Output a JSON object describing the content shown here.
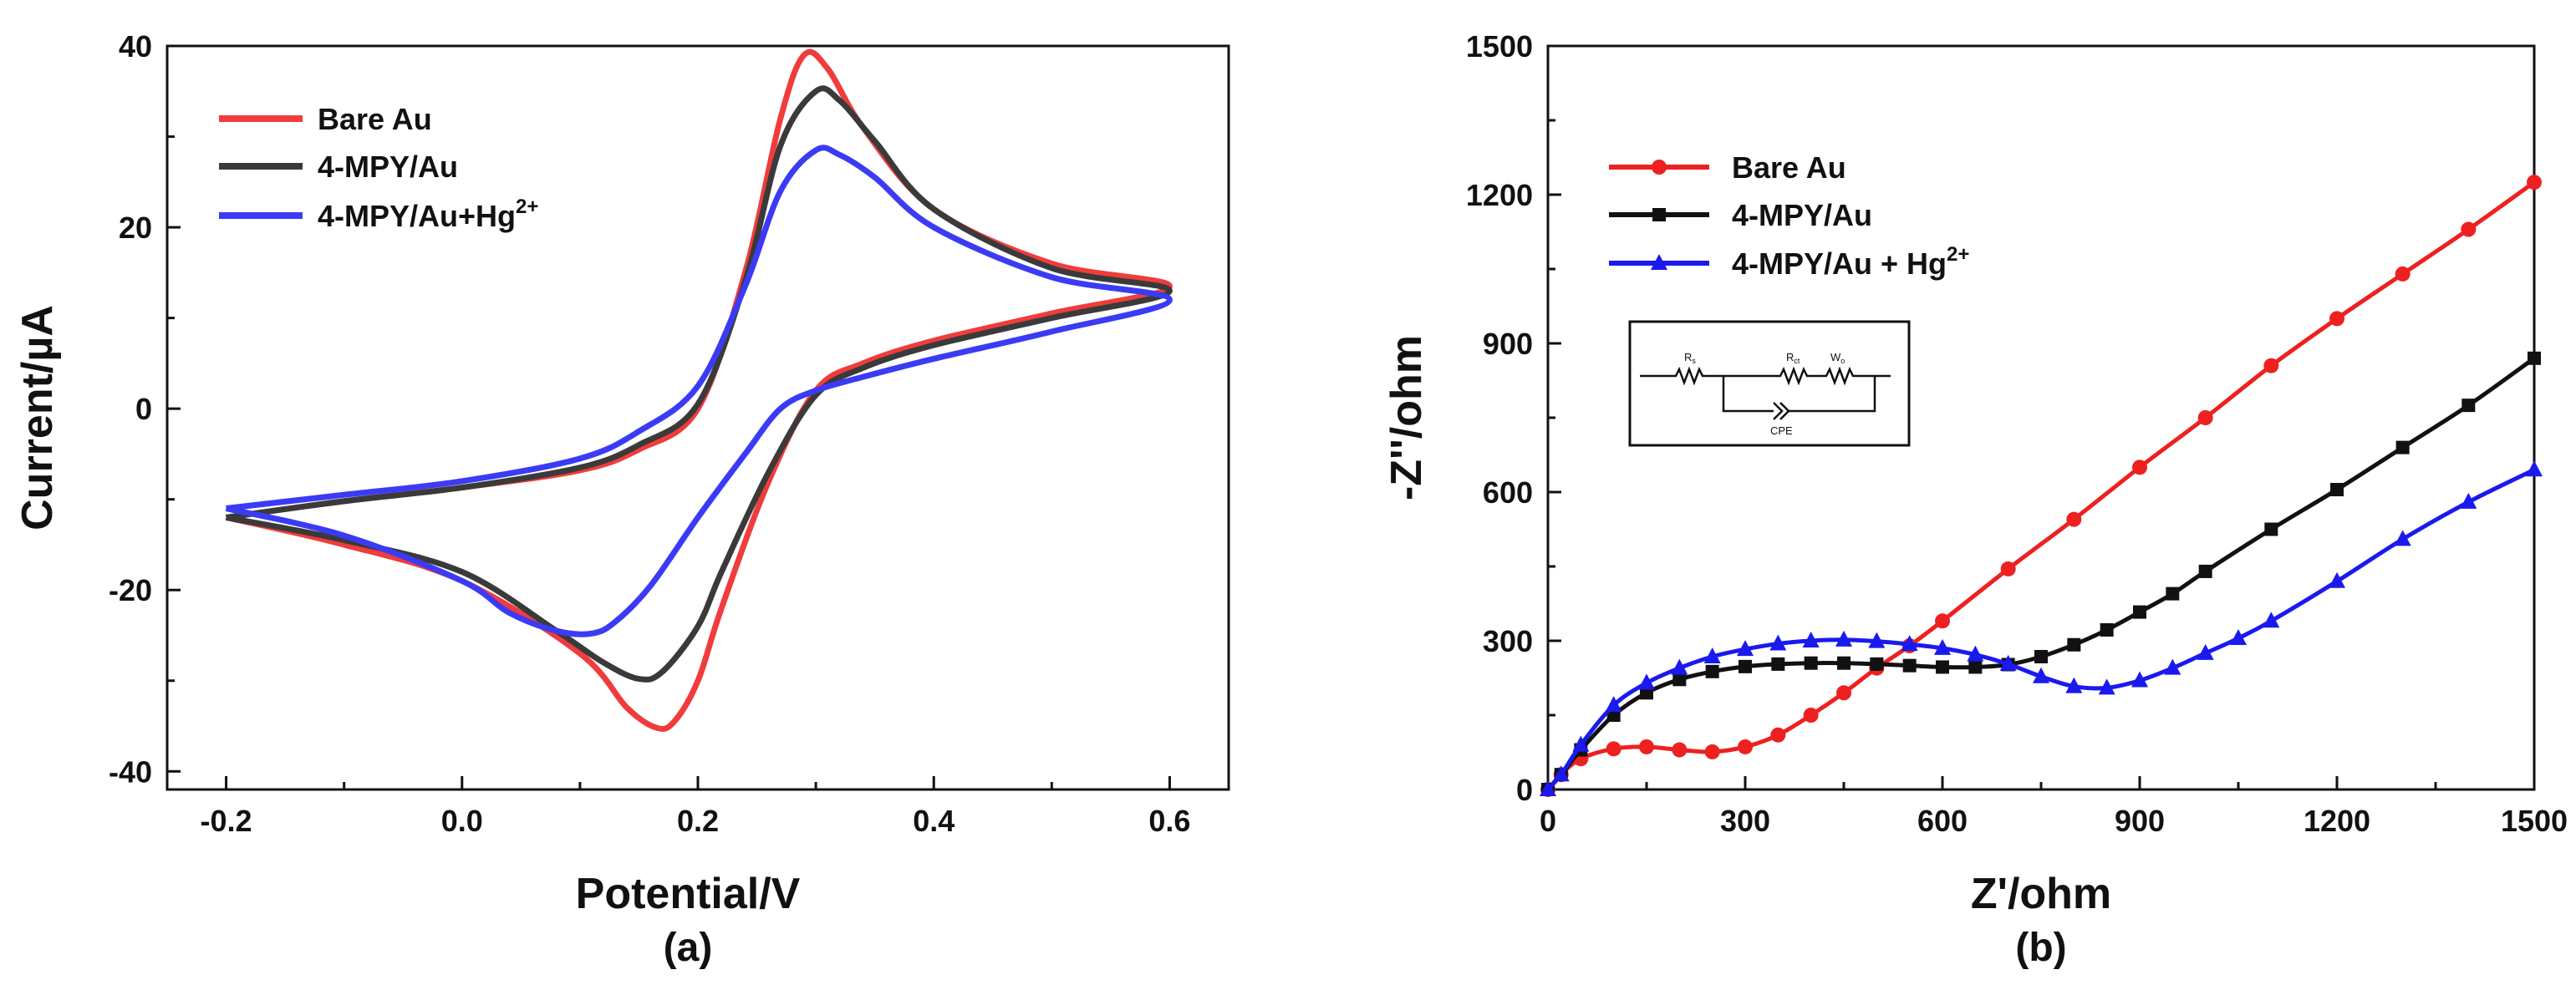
{
  "chart_data": [
    {
      "type": "line",
      "panel_label": "(a)",
      "title": "",
      "xlabel": "Potential/V",
      "ylabel": "Current/µA",
      "xlim": [
        -0.25,
        0.65
      ],
      "ylim": [
        -42,
        40
      ],
      "xticks": [
        "-0.2",
        "0.0",
        "0.2",
        "0.4",
        "0.6"
      ],
      "xtick_values": [
        -0.2,
        0.0,
        0.2,
        0.4,
        0.6
      ],
      "yticks": [
        "-40",
        "-20",
        "0",
        "20",
        "40"
      ],
      "ytick_values": [
        -40,
        -20,
        0,
        20,
        40
      ],
      "legend_position": "top-left",
      "series": [
        {
          "name": "Bare Au",
          "legend_label": "Bare Au",
          "color": "#f03c3c",
          "points": [
            [
              -0.2,
              -12
            ],
            [
              -0.1,
              -10.2
            ],
            [
              0.0,
              -8.7
            ],
            [
              0.1,
              -6.8
            ],
            [
              0.15,
              -4.5
            ],
            [
              0.2,
              0
            ],
            [
              0.24,
              15
            ],
            [
              0.27,
              32
            ],
            [
              0.29,
              39
            ],
            [
              0.31,
              37.5
            ],
            [
              0.34,
              31
            ],
            [
              0.4,
              22
            ],
            [
              0.5,
              16
            ],
            [
              0.6,
              13.5
            ],
            [
              0.5,
              10.5
            ],
            [
              0.4,
              7.5
            ],
            [
              0.34,
              5
            ],
            [
              0.3,
              2
            ],
            [
              0.26,
              -8
            ],
            [
              0.22,
              -22
            ],
            [
              0.2,
              -30
            ],
            [
              0.18,
              -34.5
            ],
            [
              0.165,
              -35.2
            ],
            [
              0.14,
              -33
            ],
            [
              0.1,
              -27
            ],
            [
              0.0,
              -19
            ],
            [
              -0.1,
              -15
            ],
            [
              -0.2,
              -12
            ]
          ]
        },
        {
          "name": "4-MPY/Au",
          "legend_label": "4-MPY/Au",
          "color": "#3a3a3a",
          "points": [
            [
              -0.2,
              -12
            ],
            [
              -0.1,
              -10.2
            ],
            [
              0.0,
              -8.7
            ],
            [
              0.1,
              -6.5
            ],
            [
              0.15,
              -4
            ],
            [
              0.2,
              0.5
            ],
            [
              0.24,
              14
            ],
            [
              0.27,
              29
            ],
            [
              0.3,
              35
            ],
            [
              0.32,
              34
            ],
            [
              0.35,
              29.5
            ],
            [
              0.4,
              22
            ],
            [
              0.5,
              15.5
            ],
            [
              0.6,
              13
            ],
            [
              0.5,
              10
            ],
            [
              0.4,
              7
            ],
            [
              0.34,
              4.5
            ],
            [
              0.3,
              1.5
            ],
            [
              0.26,
              -7
            ],
            [
              0.22,
              -18
            ],
            [
              0.2,
              -24
            ],
            [
              0.17,
              -29
            ],
            [
              0.15,
              -29.8
            ],
            [
              0.12,
              -28
            ],
            [
              0.08,
              -24.5
            ],
            [
              0.0,
              -18
            ],
            [
              -0.1,
              -14.5
            ],
            [
              -0.2,
              -12
            ]
          ]
        },
        {
          "name": "4-MPY/Au+Hg2+",
          "legend_label": "4-MPY/Au+Hg",
          "legend_sup": "2+",
          "color": "#3b3bf5",
          "points": [
            [
              -0.2,
              -11
            ],
            [
              -0.1,
              -9.5
            ],
            [
              0.0,
              -8
            ],
            [
              0.1,
              -5.5
            ],
            [
              0.15,
              -2.5
            ],
            [
              0.2,
              2.5
            ],
            [
              0.24,
              13.5
            ],
            [
              0.27,
              24
            ],
            [
              0.3,
              28.5
            ],
            [
              0.32,
              28
            ],
            [
              0.35,
              25.5
            ],
            [
              0.4,
              20
            ],
            [
              0.5,
              14.5
            ],
            [
              0.6,
              12
            ],
            [
              0.5,
              8.5
            ],
            [
              0.4,
              5.5
            ],
            [
              0.34,
              3.5
            ],
            [
              0.3,
              2
            ],
            [
              0.27,
              0
            ],
            [
              0.24,
              -5
            ],
            [
              0.2,
              -12
            ],
            [
              0.16,
              -19.5
            ],
            [
              0.13,
              -23.5
            ],
            [
              0.11,
              -24.8
            ],
            [
              0.08,
              -24.5
            ],
            [
              0.04,
              -22.5
            ],
            [
              0.0,
              -19
            ],
            [
              -0.1,
              -14
            ],
            [
              -0.2,
              -11
            ]
          ]
        }
      ]
    },
    {
      "type": "line",
      "panel_label": "(b)",
      "title": "",
      "xlabel": "Z'/ohm",
      "ylabel": "-Z''/ohm",
      "xlim": [
        0,
        1500
      ],
      "ylim": [
        0,
        1500
      ],
      "xticks": [
        "0",
        "300",
        "600",
        "900",
        "1200",
        "1500"
      ],
      "xtick_values": [
        0,
        300,
        600,
        900,
        1200,
        1500
      ],
      "yticks": [
        "0",
        "300",
        "600",
        "900",
        "1200",
        "1500"
      ],
      "ytick_values": [
        0,
        300,
        600,
        900,
        1200,
        1500
      ],
      "legend_position": "top-left",
      "inset": {
        "description": "equivalent circuit",
        "labels": [
          "R",
          "R",
          "W",
          "CPE"
        ],
        "subscripts": [
          "s",
          "ct",
          "o"
        ]
      },
      "series": [
        {
          "name": "Bare Au",
          "legend_label": "Bare Au",
          "color": "#ee2020",
          "marker": "circle",
          "points": [
            [
              0,
              0
            ],
            [
              20,
              30
            ],
            [
              50,
              62
            ],
            [
              100,
              82
            ],
            [
              150,
              86
            ],
            [
              200,
              80
            ],
            [
              250,
              76
            ],
            [
              300,
              86
            ],
            [
              350,
              110
            ],
            [
              400,
              150
            ],
            [
              450,
              195
            ],
            [
              500,
              245
            ],
            [
              550,
              290
            ],
            [
              600,
              340
            ],
            [
              700,
              445
            ],
            [
              800,
              545
            ],
            [
              900,
              650
            ],
            [
              1000,
              750
            ],
            [
              1100,
              855
            ],
            [
              1200,
              950
            ],
            [
              1300,
              1040
            ],
            [
              1400,
              1130
            ],
            [
              1500,
              1225
            ]
          ]
        },
        {
          "name": "4-MPY/Au",
          "legend_label": "4-MPY/Au",
          "color": "#111111",
          "marker": "square",
          "points": [
            [
              0,
              0
            ],
            [
              20,
              30
            ],
            [
              50,
              80
            ],
            [
              100,
              150
            ],
            [
              150,
              195
            ],
            [
              200,
              222
            ],
            [
              250,
              238
            ],
            [
              300,
              248
            ],
            [
              350,
              253
            ],
            [
              400,
              255
            ],
            [
              450,
              255
            ],
            [
              500,
              253
            ],
            [
              550,
              250
            ],
            [
              600,
              247
            ],
            [
              650,
              247
            ],
            [
              700,
              252
            ],
            [
              750,
              268
            ],
            [
              800,
              292
            ],
            [
              850,
              322
            ],
            [
              900,
              358
            ],
            [
              950,
              395
            ],
            [
              1000,
              440
            ],
            [
              1100,
              525
            ],
            [
              1200,
              605
            ],
            [
              1300,
              690
            ],
            [
              1400,
              775
            ],
            [
              1500,
              870
            ]
          ]
        },
        {
          "name": "4-MPY/Au + Hg2+",
          "legend_label": "4-MPY/Au + Hg",
          "legend_sup": "2+",
          "color": "#1a1aee",
          "marker": "triangle",
          "points": [
            [
              0,
              0
            ],
            [
              20,
              30
            ],
            [
              50,
              90
            ],
            [
              100,
              170
            ],
            [
              150,
              215
            ],
            [
              200,
              245
            ],
            [
              250,
              268
            ],
            [
              300,
              283
            ],
            [
              350,
              294
            ],
            [
              400,
              300
            ],
            [
              450,
              302
            ],
            [
              500,
              299
            ],
            [
              550,
              293
            ],
            [
              600,
              285
            ],
            [
              650,
              272
            ],
            [
              700,
              253
            ],
            [
              750,
              228
            ],
            [
              800,
              208
            ],
            [
              850,
              205
            ],
            [
              900,
              220
            ],
            [
              950,
              245
            ],
            [
              1000,
              275
            ],
            [
              1050,
              305
            ],
            [
              1100,
              340
            ],
            [
              1200,
              420
            ],
            [
              1300,
              505
            ],
            [
              1400,
              580
            ],
            [
              1500,
              645
            ]
          ]
        }
      ]
    }
  ]
}
